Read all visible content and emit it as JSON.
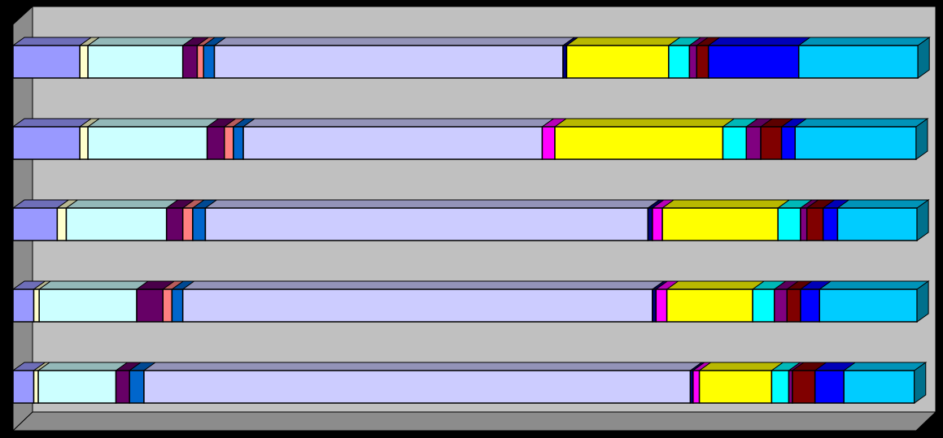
{
  "chart_data": {
    "type": "bar",
    "orientation": "horizontal",
    "stacked": true,
    "three_d": true,
    "categories": [
      null,
      null,
      null,
      null,
      null
    ],
    "xlim": [
      0,
      100
    ],
    "series": [
      {
        "color": "#9999ff",
        "values": [
          7.4,
          7.4,
          4.9,
          2.3,
          2.3
        ]
      },
      {
        "color": "#ffffcc",
        "values": [
          0.9,
          0.9,
          1.0,
          0.6,
          0.5
        ]
      },
      {
        "color": "#ccffff",
        "values": [
          10.5,
          13.2,
          11.1,
          10.8,
          8.6
        ]
      },
      {
        "color": "#660066",
        "values": [
          1.6,
          1.9,
          1.8,
          2.9,
          1.5
        ]
      },
      {
        "color": "#ff8080",
        "values": [
          0.7,
          1.0,
          1.1,
          1.0,
          0
        ]
      },
      {
        "color": "#0066cc",
        "values": [
          1.2,
          1.1,
          1.4,
          1.2,
          1.6
        ]
      },
      {
        "color": "#ccccff",
        "values": [
          38.6,
          33.1,
          49.0,
          52.0,
          60.5
        ]
      },
      {
        "color": "#000080",
        "values": [
          0.4,
          0,
          0.5,
          0.4,
          0.3
        ]
      },
      {
        "color": "#ff00ff",
        "values": [
          0,
          1.4,
          1.1,
          1.2,
          0.7
        ]
      },
      {
        "color": "#ffff00",
        "values": [
          11.3,
          18.6,
          12.8,
          9.5,
          8.0
        ]
      },
      {
        "color": "#00ffff",
        "values": [
          2.3,
          2.6,
          2.5,
          2.4,
          1.9
        ]
      },
      {
        "color": "#800080",
        "values": [
          0.8,
          1.6,
          0.7,
          1.4,
          0.4
        ]
      },
      {
        "color": "#800000",
        "values": [
          1.3,
          2.3,
          1.8,
          1.5,
          2.5
        ]
      },
      {
        "color": "#0000ff",
        "values": [
          10.0,
          1.5,
          1.6,
          2.1,
          3.2
        ]
      },
      {
        "color": "#00ccff",
        "values": [
          13.2,
          13.4,
          8.8,
          10.8,
          7.8
        ]
      }
    ]
  }
}
